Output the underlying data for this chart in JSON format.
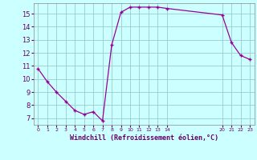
{
  "x": [
    0,
    1,
    2,
    3,
    4,
    5,
    6,
    7,
    8,
    9,
    10,
    11,
    12,
    13,
    14,
    20,
    21,
    22,
    23
  ],
  "y": [
    10.8,
    9.8,
    9.0,
    8.3,
    7.6,
    7.3,
    7.5,
    6.8,
    12.6,
    15.1,
    15.5,
    15.5,
    15.5,
    15.5,
    15.4,
    14.9,
    12.8,
    11.8,
    11.5
  ],
  "line_color": "#990099",
  "marker_color": "#990099",
  "bg_color": "#ccffff",
  "grid_color": "#99cccc",
  "xlabel": "Windchill (Refroidissement éolien,°C)",
  "xlabel_color": "#660066",
  "tick_color": "#660066",
  "yticks": [
    7,
    8,
    9,
    10,
    11,
    12,
    13,
    14,
    15
  ],
  "ylim": [
    6.5,
    15.8
  ],
  "xlim": [
    -0.5,
    23.5
  ],
  "xtick_positions": [
    0,
    1,
    2,
    3,
    4,
    5,
    6,
    7,
    8,
    9,
    10,
    11,
    12,
    13,
    14,
    20,
    21,
    22,
    23
  ],
  "xtick_labels": [
    "0",
    "1",
    "2",
    "3",
    "4",
    "5",
    "6",
    "7",
    "8",
    "9",
    "10",
    "11",
    "12",
    "13",
    "14",
    "20",
    "21",
    "22",
    "23"
  ]
}
